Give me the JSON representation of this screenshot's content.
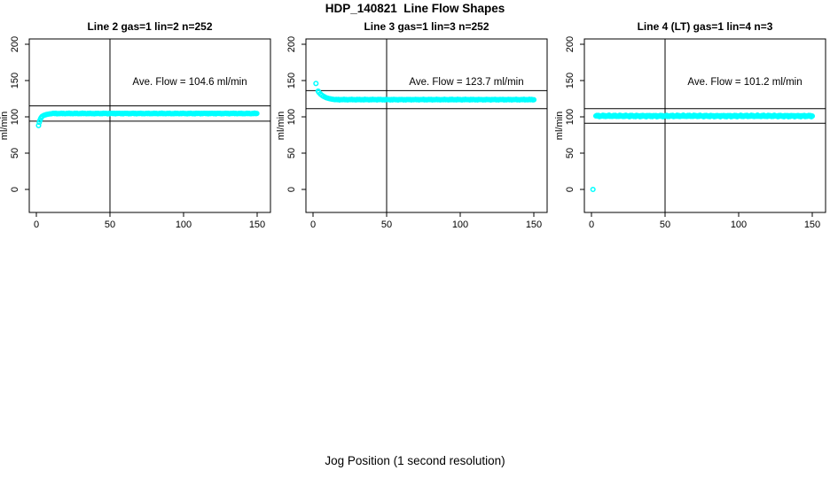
{
  "chart_data": {
    "type": "scatter",
    "title": "HDP_140821  Line Flow Shapes",
    "xlabel": "Jog Position (1 second resolution)",
    "ylabel": "ml/min",
    "x_ticks": [
      0,
      50,
      100,
      150
    ],
    "y_ticks": [
      0,
      50,
      100,
      150,
      200
    ],
    "x_range": [
      0,
      150
    ],
    "y_range": [
      0,
      200
    ],
    "grid": false,
    "legend": "none",
    "marker": {
      "shape": "open-circle",
      "color": "#00FFFF"
    },
    "axis_color": "#000000",
    "background": "#FFFFFF",
    "panels": [
      {
        "title": "Line 2 gas=1 lin=2 n=252",
        "annotation": "Ave. Flow =  104.6  ml/min",
        "ave_flow": 104.6,
        "n": 252,
        "hlines": [
          115.1,
          94.1
        ],
        "vline": 50,
        "lead_in_points": [
          [
            1.5,
            88
          ],
          [
            2,
            92.5
          ],
          [
            2.5,
            95.5
          ],
          [
            3,
            98
          ],
          [
            3.5,
            99.5
          ],
          [
            4,
            100.7
          ],
          [
            5,
            101.9
          ],
          [
            6,
            102.7
          ],
          [
            7,
            103.3
          ],
          [
            8,
            103.7
          ],
          [
            9,
            104.0
          ],
          [
            10,
            104.2
          ]
        ],
        "plateau": {
          "x_from": 11,
          "x_to": 150,
          "x_step": 0.75,
          "y": 104.6,
          "noise": 0.5
        }
      },
      {
        "title": "Line 3 gas=1 lin=3 n=252",
        "annotation": "Ave. Flow =  123.7  ml/min",
        "ave_flow": 123.7,
        "n": 252,
        "hlines": [
          136.1,
          111.3
        ],
        "vline": 50,
        "lead_in_points": [
          [
            2,
            146
          ],
          [
            3.5,
            135.5
          ],
          [
            4,
            133.8
          ],
          [
            5,
            131.5
          ],
          [
            6,
            129.8
          ],
          [
            7,
            128.4
          ],
          [
            8,
            127.3
          ],
          [
            9,
            126.4
          ],
          [
            10,
            125.7
          ],
          [
            11,
            125.1
          ],
          [
            12,
            124.7
          ],
          [
            13,
            124.3
          ],
          [
            14,
            124.0
          ]
        ],
        "plateau": {
          "x_from": 15,
          "x_to": 150,
          "x_step": 0.75,
          "y": 123.7,
          "noise": 0.5
        }
      },
      {
        "title": "Line 4 (LT) gas=1 lin=4 n=3",
        "annotation": "Ave. Flow =  101.2  ml/min",
        "ave_flow": 101.2,
        "n": 3,
        "hlines": [
          111.3,
          91.1
        ],
        "vline": 50,
        "lead_in_points": [
          [
            1,
            0
          ]
        ],
        "plateau": {
          "x_from": 3,
          "x_to": 150,
          "x_step": 0.6,
          "y": 101.2,
          "noise": 1.1
        }
      }
    ]
  }
}
